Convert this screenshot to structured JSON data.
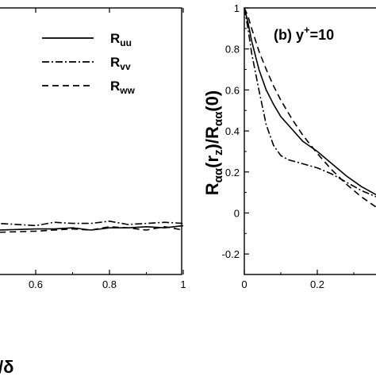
{
  "chart_data": [
    {
      "panel": "a",
      "type": "line",
      "xlabel_visible": "/δ",
      "xlim": [
        0.25,
        1.0
      ],
      "ylim": [
        -0.2,
        1.0
      ],
      "x_ticks": [
        "0.6",
        "0.8",
        "1"
      ],
      "grid": false,
      "legend_position": "top-right",
      "series": [
        {
          "name": "R",
          "name_sub": "uu",
          "style": "solid",
          "x": [
            0.25,
            0.4,
            0.5,
            0.6,
            0.65,
            0.7,
            0.75,
            0.8,
            0.85,
            0.9,
            0.95,
            1.0
          ],
          "y": [
            -0.02,
            -0.01,
            0.0,
            0.005,
            0.005,
            0.01,
            0.0,
            0.01,
            0.01,
            0.015,
            0.01,
            0.02
          ]
        },
        {
          "name": "R",
          "name_sub": "vv",
          "style": "dashdot",
          "x": [
            0.25,
            0.4,
            0.5,
            0.6,
            0.65,
            0.7,
            0.75,
            0.8,
            0.85,
            0.9,
            0.95,
            1.0
          ],
          "y": [
            0.03,
            0.03,
            0.03,
            0.02,
            0.035,
            0.03,
            0.03,
            0.04,
            0.025,
            0.03,
            0.035,
            0.03
          ]
        },
        {
          "name": "R",
          "name_sub": "ww",
          "style": "dashed",
          "x": [
            0.25,
            0.4,
            0.5,
            0.6,
            0.65,
            0.7,
            0.75,
            0.8,
            0.85,
            0.9,
            0.95,
            1.0
          ],
          "y": [
            -0.02,
            -0.02,
            -0.01,
            -0.005,
            0.0,
            0.005,
            0.0,
            0.015,
            0.01,
            0.0,
            0.015,
            0.0
          ]
        }
      ]
    },
    {
      "panel": "b",
      "type": "line",
      "annotation": "(b)",
      "annotation2": "y",
      "annotation2_sup": "+",
      "annotation2_rest": "=10",
      "ylabel_parts": [
        "R",
        "αα",
        "(r",
        "z",
        ")/R",
        "αα",
        "(0)"
      ],
      "xlim": [
        0.0,
        0.4
      ],
      "ylim": [
        -0.3,
        1.0
      ],
      "x_ticks": [
        "0",
        "0.2"
      ],
      "y_ticks": [
        "1",
        "0.8",
        "0.6",
        "0.4",
        "0.2",
        "0",
        "-0.2"
      ],
      "grid": false,
      "series": [
        {
          "style": "solid",
          "x": [
            0.0,
            0.01,
            0.02,
            0.04,
            0.06,
            0.08,
            0.1,
            0.13,
            0.16,
            0.2,
            0.24,
            0.28,
            0.32,
            0.36,
            0.4
          ],
          "y": [
            1.0,
            0.93,
            0.84,
            0.7,
            0.6,
            0.53,
            0.47,
            0.41,
            0.35,
            0.3,
            0.24,
            0.18,
            0.13,
            0.09,
            0.06
          ]
        },
        {
          "style": "dashdot",
          "x": [
            0.0,
            0.01,
            0.02,
            0.04,
            0.06,
            0.08,
            0.1,
            0.12,
            0.14,
            0.16,
            0.2,
            0.24,
            0.28,
            0.32,
            0.36,
            0.4
          ],
          "y": [
            1.0,
            0.9,
            0.78,
            0.6,
            0.43,
            0.33,
            0.28,
            0.26,
            0.25,
            0.24,
            0.22,
            0.19,
            0.15,
            0.11,
            0.08,
            0.06
          ]
        },
        {
          "style": "dashed",
          "x": [
            0.0,
            0.01,
            0.02,
            0.04,
            0.06,
            0.08,
            0.1,
            0.13,
            0.16,
            0.2,
            0.24,
            0.28,
            0.32,
            0.36,
            0.4
          ],
          "y": [
            1.0,
            0.96,
            0.9,
            0.79,
            0.7,
            0.62,
            0.55,
            0.46,
            0.38,
            0.29,
            0.21,
            0.14,
            0.08,
            0.03,
            -0.02
          ]
        }
      ]
    }
  ]
}
